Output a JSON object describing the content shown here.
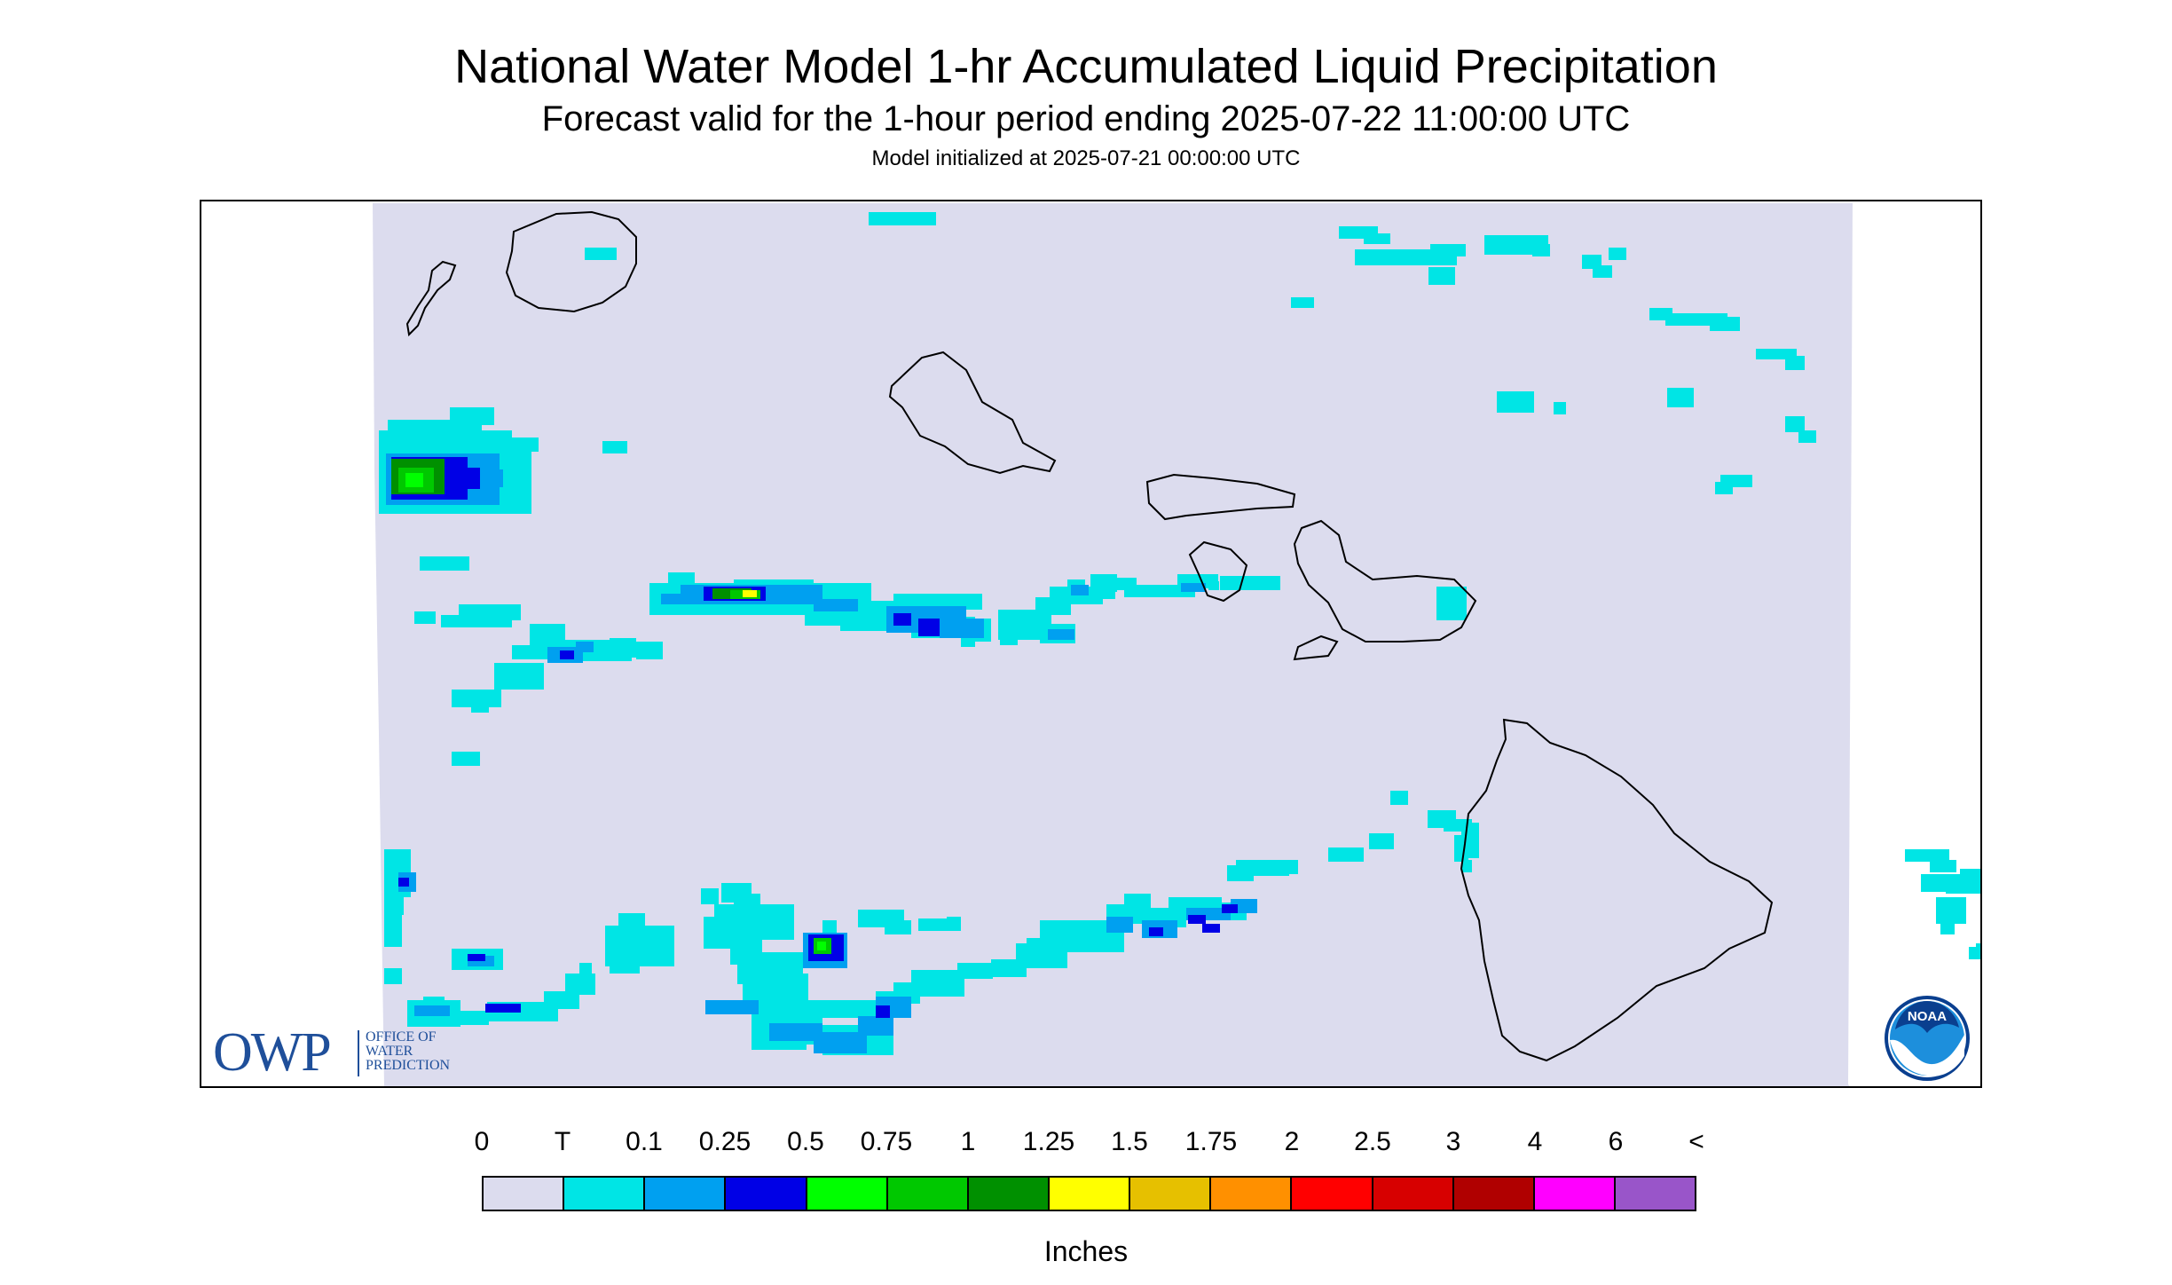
{
  "header": {
    "title": "National Water Model 1-hr Accumulated Liquid Precipitation",
    "subtitle": "Forecast valid for the 1-hour period ending 2025-07-22 11:00:00 UTC",
    "init_line": "Model initialized at 2025-07-21 00:00:00 UTC"
  },
  "logos": {
    "owp": {
      "letters": "OWP",
      "lines": [
        "OFFICE OF",
        "WATER",
        "PREDICTION"
      ]
    },
    "noaa": {
      "text": "NOAA"
    }
  },
  "legend": {
    "units": "Inches",
    "labels": [
      "0",
      "T",
      "0.1",
      "0.25",
      "0.5",
      "0.75",
      "1",
      "1.25",
      "1.5",
      "1.75",
      "2",
      "2.5",
      "3",
      "4",
      "6",
      "<"
    ],
    "colors": [
      "#dcdcee",
      "#00e5e5",
      "#00a0f0",
      "#0000e6",
      "#00ff00",
      "#00c800",
      "#009000",
      "#ffff00",
      "#e6c000",
      "#ff9000",
      "#ff0000",
      "#d70000",
      "#b00000",
      "#ff00ff",
      "#9955c9"
    ]
  },
  "map": {
    "background_color": "#dcdcee",
    "coastline_color": "#000000"
  }
}
